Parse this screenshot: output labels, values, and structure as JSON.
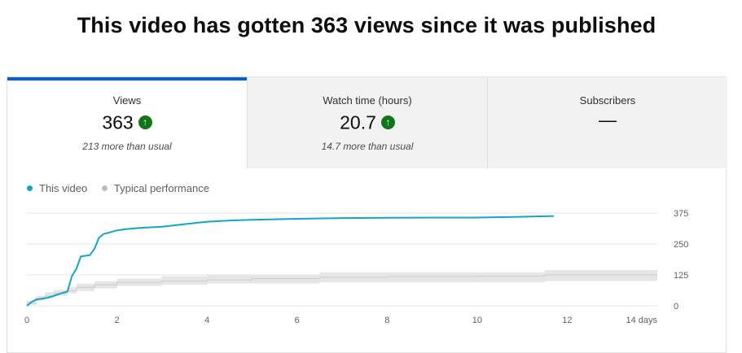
{
  "headline": "This video has gotten 363 views since it was published",
  "tabs": [
    {
      "label": "Views",
      "value": "363",
      "trend_icon": "arrow-up-icon",
      "note": "213 more than usual",
      "active": true
    },
    {
      "label": "Watch time (hours)",
      "value": "20.7",
      "trend_icon": "arrow-up-icon",
      "note": "14.7 more than usual",
      "active": false
    },
    {
      "label": "Subscribers",
      "value": "—",
      "active": false
    }
  ],
  "legend": {
    "this_video": "This video",
    "typical": "Typical performance"
  },
  "colors": {
    "accent": "#065fd4",
    "series": "#12a5c8",
    "typical": "#e6e6e6",
    "typical_line": "#cccccc",
    "up": "#107516"
  },
  "chart_data": {
    "type": "line",
    "x_unit": "days",
    "xlim": [
      0,
      14
    ],
    "ylim": [
      0,
      375
    ],
    "x_ticks": [
      "0",
      "2",
      "4",
      "6",
      "8",
      "10",
      "12",
      "14 days"
    ],
    "y_ticks": [
      "0",
      "125",
      "250",
      "375"
    ],
    "axis_side": "right",
    "grid": true,
    "legend_position": "top-left",
    "series": [
      {
        "name": "This video",
        "x": [
          0,
          0.1,
          0.2,
          0.3,
          0.45,
          0.6,
          0.75,
          0.9,
          1.0,
          1.1,
          1.2,
          1.4,
          1.5,
          1.6,
          1.7,
          1.8,
          1.9,
          2.0,
          2.2,
          2.5,
          3.0,
          3.5,
          4.0,
          4.5,
          5.0,
          6.0,
          7.0,
          8.0,
          9.0,
          10.0,
          11.0,
          11.7
        ],
        "y": [
          0,
          15,
          25,
          28,
          32,
          40,
          50,
          58,
          120,
          150,
          200,
          205,
          230,
          275,
          290,
          295,
          300,
          305,
          310,
          315,
          320,
          330,
          340,
          345,
          348,
          352,
          355,
          356,
          357,
          357,
          360,
          363
        ]
      },
      {
        "name": "Typical performance",
        "x": [
          0,
          0.2,
          0.4,
          0.6,
          0.9,
          1.1,
          1.5,
          2.0,
          3.0,
          4.0,
          5.0,
          6.5,
          8.0,
          10.0,
          11.5,
          14.0
        ],
        "y_low": [
          5,
          20,
          30,
          40,
          50,
          60,
          70,
          80,
          85,
          90,
          90,
          95,
          95,
          95,
          100,
          100
        ],
        "y_high": [
          20,
          40,
          55,
          65,
          75,
          90,
          100,
          110,
          120,
          125,
          125,
          135,
          135,
          135,
          145,
          145
        ],
        "y_median": [
          10,
          30,
          40,
          50,
          60,
          75,
          85,
          95,
          100,
          105,
          110,
          115,
          118,
          120,
          125,
          125
        ]
      }
    ]
  }
}
